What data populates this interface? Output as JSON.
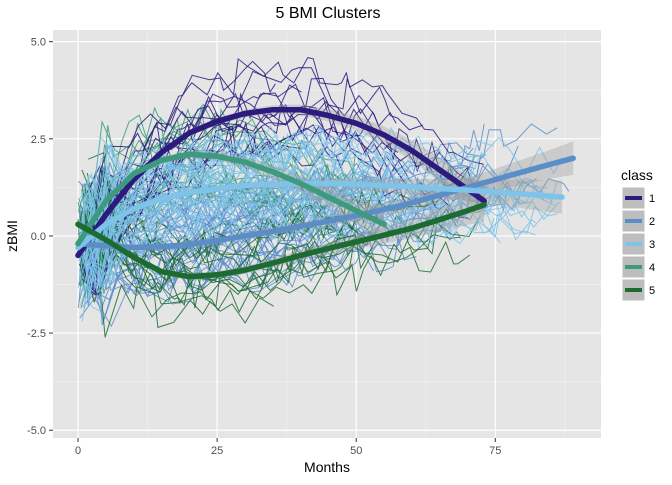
{
  "chart_data": {
    "type": "line",
    "title": "5 BMI Clusters",
    "xlabel": "Months",
    "ylabel": "zBMI",
    "xlim": [
      -4.5,
      94
    ],
    "ylim": [
      -5.2,
      5.3
    ],
    "x_ticks": [
      0,
      25,
      50,
      75
    ],
    "x_tick_labels": [
      "0",
      "25",
      "50",
      "75"
    ],
    "y_ticks": [
      -5,
      -2.5,
      0,
      2.5,
      5
    ],
    "y_tick_labels": [
      "-5.0",
      "-2.5",
      "0.0",
      "2.5",
      "5.0"
    ],
    "grid": true,
    "panel_background": "#e5e5e5",
    "legend": {
      "title": "class",
      "placement": "right",
      "entries": [
        "1",
        "2",
        "3",
        "4",
        "5"
      ]
    },
    "series": [
      {
        "name": "1",
        "color": "#2c1a7e",
        "smooth": [
          {
            "x": 0,
            "y": -0.5
          },
          {
            "x": 5,
            "y": 0.55
          },
          {
            "x": 10,
            "y": 1.45
          },
          {
            "x": 15,
            "y": 2.15
          },
          {
            "x": 20,
            "y": 2.65
          },
          {
            "x": 25,
            "y": 2.95
          },
          {
            "x": 30,
            "y": 3.15
          },
          {
            "x": 35,
            "y": 3.25
          },
          {
            "x": 40,
            "y": 3.25
          },
          {
            "x": 45,
            "y": 3.1
          },
          {
            "x": 50,
            "y": 2.9
          },
          {
            "x": 55,
            "y": 2.6
          },
          {
            "x": 60,
            "y": 2.2
          },
          {
            "x": 65,
            "y": 1.7
          },
          {
            "x": 70,
            "y": 1.2
          },
          {
            "x": 73,
            "y": 0.9
          }
        ],
        "trajectory_count": 16
      },
      {
        "name": "2",
        "color": "#5b8ec8",
        "smooth": [
          {
            "x": 0,
            "y": -0.2
          },
          {
            "x": 5,
            "y": -0.25
          },
          {
            "x": 10,
            "y": -0.3
          },
          {
            "x": 15,
            "y": -0.28
          },
          {
            "x": 20,
            "y": -0.22
          },
          {
            "x": 25,
            "y": -0.12
          },
          {
            "x": 30,
            "y": 0.0
          },
          {
            "x": 35,
            "y": 0.12
          },
          {
            "x": 40,
            "y": 0.25
          },
          {
            "x": 45,
            "y": 0.38
          },
          {
            "x": 50,
            "y": 0.52
          },
          {
            "x": 55,
            "y": 0.68
          },
          {
            "x": 60,
            "y": 0.85
          },
          {
            "x": 65,
            "y": 1.05
          },
          {
            "x": 70,
            "y": 1.25
          },
          {
            "x": 75,
            "y": 1.45
          },
          {
            "x": 80,
            "y": 1.65
          },
          {
            "x": 85,
            "y": 1.85
          },
          {
            "x": 89,
            "y": 2.0
          }
        ],
        "trajectory_count": 40
      },
      {
        "name": "3",
        "color": "#7ec3ea",
        "smooth": [
          {
            "x": 0,
            "y": -0.3
          },
          {
            "x": 5,
            "y": 0.3
          },
          {
            "x": 10,
            "y": 0.7
          },
          {
            "x": 15,
            "y": 0.95
          },
          {
            "x": 20,
            "y": 1.12
          },
          {
            "x": 25,
            "y": 1.22
          },
          {
            "x": 30,
            "y": 1.3
          },
          {
            "x": 35,
            "y": 1.33
          },
          {
            "x": 40,
            "y": 1.35
          },
          {
            "x": 45,
            "y": 1.35
          },
          {
            "x": 50,
            "y": 1.33
          },
          {
            "x": 55,
            "y": 1.3
          },
          {
            "x": 60,
            "y": 1.27
          },
          {
            "x": 65,
            "y": 1.22
          },
          {
            "x": 70,
            "y": 1.18
          },
          {
            "x": 75,
            "y": 1.13
          },
          {
            "x": 80,
            "y": 1.08
          },
          {
            "x": 87,
            "y": 1.0
          }
        ],
        "trajectory_count": 40
      },
      {
        "name": "4",
        "color": "#3d9a7c",
        "smooth": [
          {
            "x": 0,
            "y": -0.2
          },
          {
            "x": 5,
            "y": 0.9
          },
          {
            "x": 10,
            "y": 1.6
          },
          {
            "x": 15,
            "y": 1.95
          },
          {
            "x": 20,
            "y": 2.1
          },
          {
            "x": 25,
            "y": 2.05
          },
          {
            "x": 30,
            "y": 1.9
          },
          {
            "x": 35,
            "y": 1.65
          },
          {
            "x": 40,
            "y": 1.35
          },
          {
            "x": 45,
            "y": 1.0
          },
          {
            "x": 50,
            "y": 0.65
          },
          {
            "x": 55,
            "y": 0.3
          }
        ],
        "trajectory_count": 20
      },
      {
        "name": "5",
        "color": "#1c6b30",
        "smooth": [
          {
            "x": 0,
            "y": 0.3
          },
          {
            "x": 5,
            "y": -0.1
          },
          {
            "x": 10,
            "y": -0.55
          },
          {
            "x": 15,
            "y": -0.92
          },
          {
            "x": 20,
            "y": -1.05
          },
          {
            "x": 25,
            "y": -1.0
          },
          {
            "x": 30,
            "y": -0.88
          },
          {
            "x": 35,
            "y": -0.7
          },
          {
            "x": 40,
            "y": -0.5
          },
          {
            "x": 45,
            "y": -0.32
          },
          {
            "x": 50,
            "y": -0.15
          },
          {
            "x": 55,
            "y": 0.02
          },
          {
            "x": 60,
            "y": 0.2
          },
          {
            "x": 65,
            "y": 0.42
          },
          {
            "x": 70,
            "y": 0.65
          },
          {
            "x": 73,
            "y": 0.8
          }
        ],
        "trajectory_count": 14
      }
    ]
  }
}
